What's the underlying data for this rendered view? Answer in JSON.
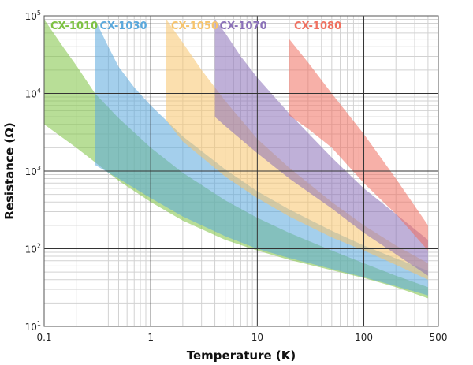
{
  "chart_data": {
    "type": "area",
    "title": "",
    "xlabel": "Temperature (K)",
    "ylabel": "Resistance (Ω)",
    "xscale": "log",
    "yscale": "log",
    "xlim": [
      0.1,
      500
    ],
    "ylim": [
      10,
      100000
    ],
    "grid": true,
    "legend_position": "top",
    "x_ticks": [
      {
        "value": 0.1,
        "label": "0.1"
      },
      {
        "value": 1,
        "label": "1"
      },
      {
        "value": 10,
        "label": "10"
      },
      {
        "value": 100,
        "label": "100"
      },
      {
        "value": 500,
        "label": "500"
      }
    ],
    "y_ticks": [
      {
        "value": 10,
        "base": "10",
        "exp": "1"
      },
      {
        "value": 100,
        "base": "10",
        "exp": "2"
      },
      {
        "value": 1000,
        "base": "10",
        "exp": "3"
      },
      {
        "value": 10000,
        "base": "10",
        "exp": "4"
      },
      {
        "value": 100000,
        "base": "10",
        "exp": "5"
      }
    ],
    "series": [
      {
        "name": "CX-1010",
        "color": "#7dc242",
        "upper": [
          [
            0.1,
            90000
          ],
          [
            0.15,
            40000
          ],
          [
            0.2,
            23000
          ],
          [
            0.3,
            10000
          ],
          [
            0.5,
            4800
          ],
          [
            1,
            2000
          ],
          [
            2,
            950
          ],
          [
            5,
            420
          ],
          [
            10,
            250
          ],
          [
            20,
            160
          ],
          [
            50,
            95
          ],
          [
            100,
            65
          ],
          [
            200,
            45
          ],
          [
            400,
            32
          ]
        ],
        "lower": [
          [
            0.1,
            4000
          ],
          [
            0.2,
            2000
          ],
          [
            0.3,
            1300
          ],
          [
            0.5,
            750
          ],
          [
            1,
            400
          ],
          [
            2,
            230
          ],
          [
            5,
            130
          ],
          [
            10,
            95
          ],
          [
            20,
            72
          ],
          [
            50,
            53
          ],
          [
            100,
            42
          ],
          [
            200,
            32
          ],
          [
            400,
            23
          ]
        ]
      },
      {
        "name": "CX-1030",
        "color": "#5aa8dc",
        "upper": [
          [
            0.3,
            90000
          ],
          [
            0.4,
            40000
          ],
          [
            0.5,
            22000
          ],
          [
            0.7,
            12000
          ],
          [
            1,
            7000
          ],
          [
            2,
            2800
          ],
          [
            5,
            1050
          ],
          [
            10,
            550
          ],
          [
            20,
            320
          ],
          [
            50,
            170
          ],
          [
            100,
            110
          ],
          [
            200,
            75
          ],
          [
            400,
            52
          ]
        ],
        "lower": [
          [
            0.3,
            1200
          ],
          [
            0.5,
            800
          ],
          [
            1,
            450
          ],
          [
            2,
            260
          ],
          [
            5,
            145
          ],
          [
            10,
            100
          ],
          [
            20,
            76
          ],
          [
            50,
            55
          ],
          [
            100,
            43
          ],
          [
            200,
            33
          ],
          [
            400,
            25
          ]
        ]
      },
      {
        "name": "CX-1050",
        "color": "#f7c46b",
        "upper": [
          [
            1.4,
            90000
          ],
          [
            2,
            45000
          ],
          [
            3,
            20000
          ],
          [
            5,
            8000
          ],
          [
            10,
            2600
          ],
          [
            20,
            1100
          ],
          [
            50,
            400
          ],
          [
            100,
            200
          ],
          [
            200,
            110
          ],
          [
            400,
            65
          ]
        ],
        "lower": [
          [
            1.4,
            4500
          ],
          [
            2,
            2400
          ],
          [
            5,
            850
          ],
          [
            10,
            450
          ],
          [
            20,
            260
          ],
          [
            50,
            140
          ],
          [
            100,
            95
          ],
          [
            200,
            62
          ],
          [
            400,
            40
          ]
        ]
      },
      {
        "name": "CX-1070",
        "color": "#8a70b8",
        "upper": [
          [
            4,
            90000
          ],
          [
            5,
            60000
          ],
          [
            7,
            30000
          ],
          [
            10,
            16000
          ],
          [
            20,
            5500
          ],
          [
            50,
            1500
          ],
          [
            100,
            600
          ],
          [
            200,
            280
          ],
          [
            400,
            130
          ]
        ],
        "lower": [
          [
            4,
            5000
          ],
          [
            5,
            3800
          ],
          [
            10,
            1700
          ],
          [
            20,
            800
          ],
          [
            50,
            330
          ],
          [
            100,
            160
          ],
          [
            200,
            85
          ],
          [
            400,
            45
          ]
        ]
      },
      {
        "name": "CX-1080",
        "color": "#f07060",
        "upper": [
          [
            20,
            50000
          ],
          [
            30,
            25000
          ],
          [
            50,
            10000
          ],
          [
            100,
            3000
          ],
          [
            200,
            800
          ],
          [
            400,
            200
          ]
        ],
        "lower": [
          [
            20,
            5200
          ],
          [
            30,
            3500
          ],
          [
            50,
            2000
          ],
          [
            100,
            700
          ],
          [
            200,
            280
          ],
          [
            400,
            95
          ]
        ]
      }
    ]
  }
}
